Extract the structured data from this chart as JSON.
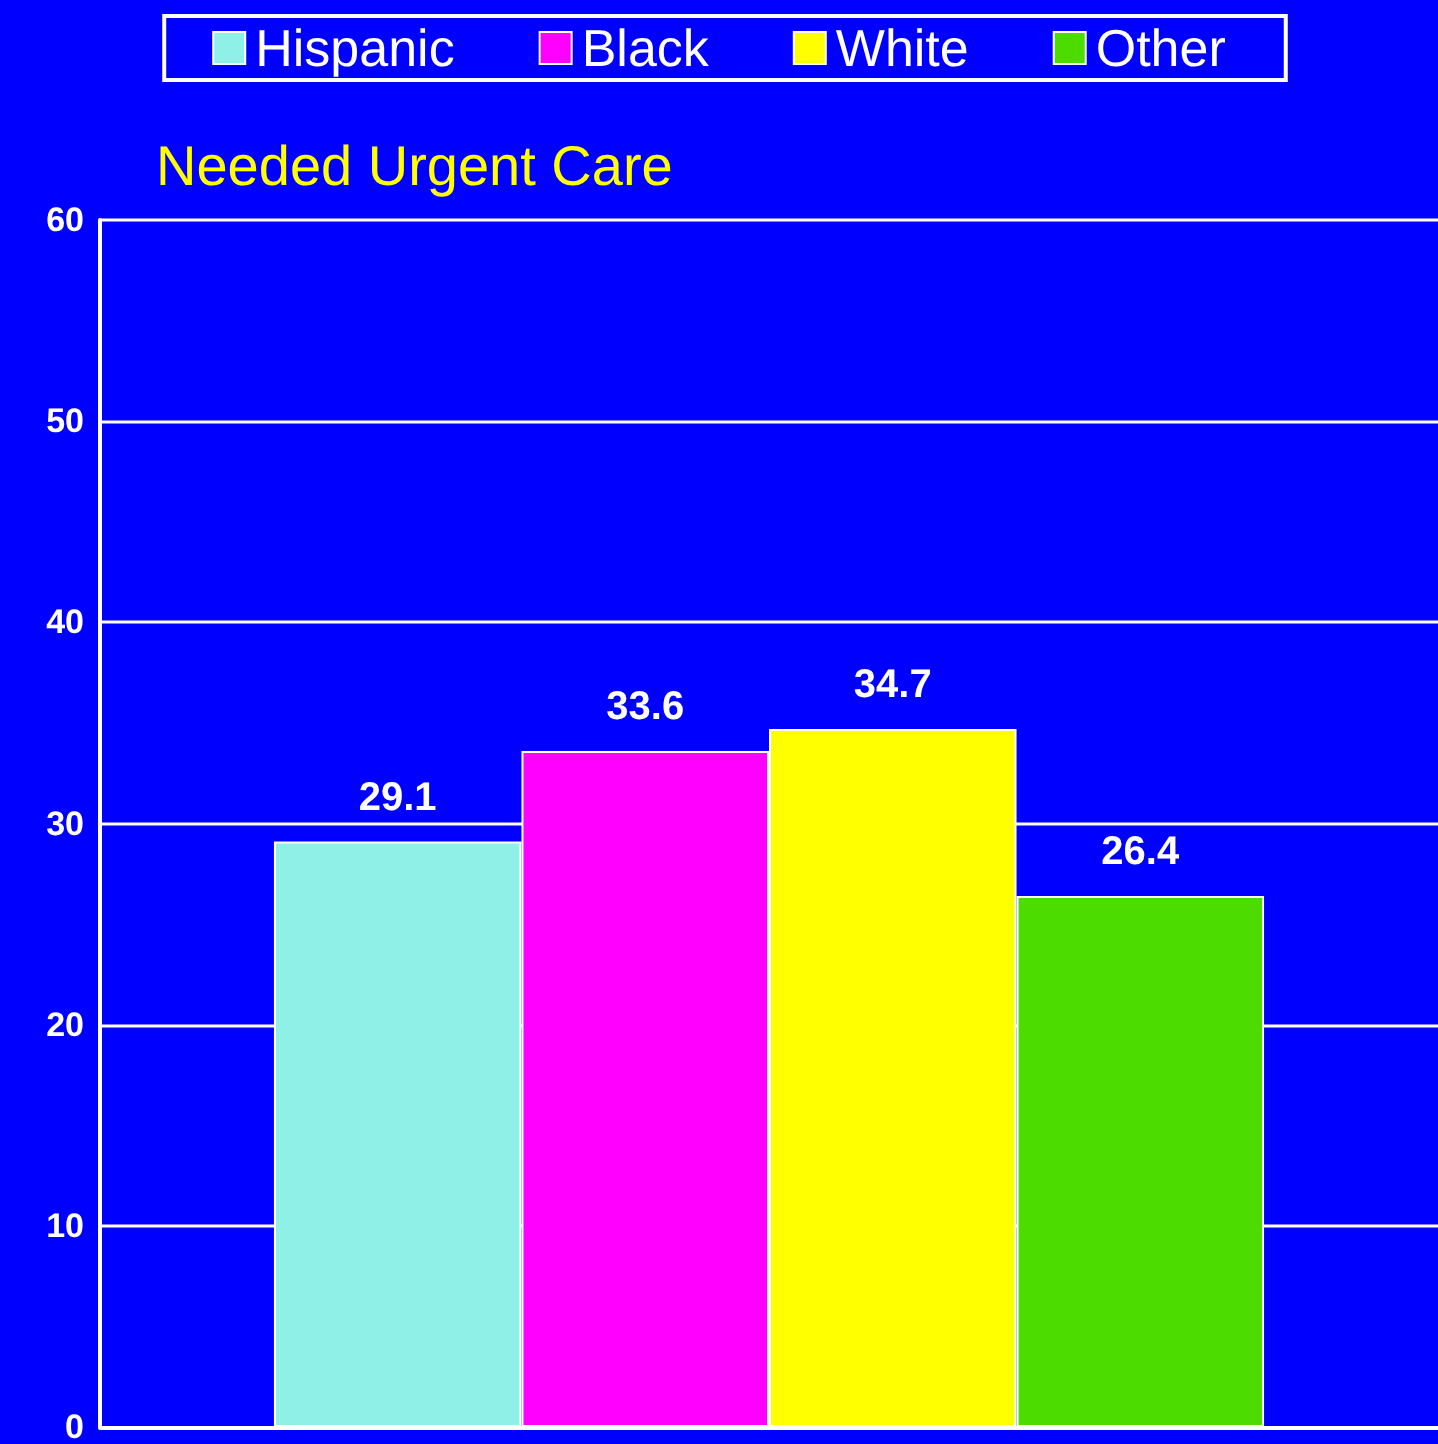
{
  "chart_data": {
    "type": "bar",
    "title": "Needed Urgent Care",
    "categories": [
      null
    ],
    "series": [
      {
        "name": "Hispanic",
        "color": "#8ff0e8",
        "values": [
          29.1
        ]
      },
      {
        "name": "Black",
        "color": "#ff00ff",
        "values": [
          33.6
        ]
      },
      {
        "name": "White",
        "color": "#ffff00",
        "values": [
          34.7
        ]
      },
      {
        "name": "Other",
        "color": "#4cdc00",
        "values": [
          26.4
        ]
      }
    ],
    "ylim": [
      0,
      60
    ],
    "yticks": [
      0,
      10,
      20,
      30,
      40,
      50,
      60
    ],
    "grid": "y",
    "legend": "top",
    "data_labels": true
  }
}
